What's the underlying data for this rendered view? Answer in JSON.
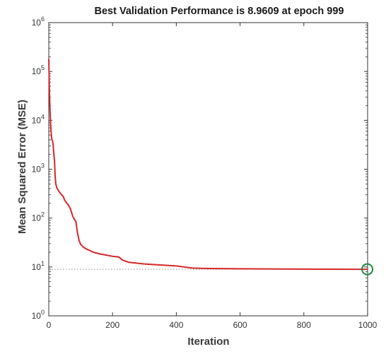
{
  "chart_data": {
    "type": "line",
    "title": "Best Validation Performance is 8.9609 at epoch 999",
    "xlabel": "Iteration",
    "ylabel": "Mean Squared Error  (MSE)",
    "xlim": [
      0,
      1000
    ],
    "ylim": [
      1,
      1000000
    ],
    "yscale": "log",
    "grid": false,
    "x_ticks": [
      "0",
      "200",
      "400",
      "600",
      "800",
      "1000"
    ],
    "y_ticks": [
      {
        "base": "10",
        "exp": "0"
      },
      {
        "base": "10",
        "exp": "1"
      },
      {
        "base": "10",
        "exp": "2"
      },
      {
        "base": "10",
        "exp": "3"
      },
      {
        "base": "10",
        "exp": "4"
      },
      {
        "base": "10",
        "exp": "5"
      },
      {
        "base": "10",
        "exp": "6"
      }
    ],
    "series": [
      {
        "color": "#d62728",
        "x": [
          0,
          2,
          4,
          6,
          8,
          10,
          12,
          14,
          16,
          18,
          20,
          22,
          25,
          30,
          35,
          40,
          45,
          50,
          55,
          60,
          65,
          70,
          75,
          80,
          85,
          90,
          95,
          100,
          110,
          120,
          140,
          160,
          180,
          200,
          220,
          230,
          250,
          300,
          350,
          400,
          450,
          500,
          600,
          700,
          800,
          900,
          999
        ],
        "y": [
          180000,
          40000,
          15000,
          8000,
          5000,
          4000,
          3800,
          3000,
          2000,
          1500,
          700,
          500,
          420,
          370,
          330,
          300,
          280,
          230,
          210,
          190,
          170,
          140,
          110,
          95,
          85,
          50,
          35,
          29,
          25,
          23,
          20,
          18.5,
          17.5,
          16.5,
          16,
          14,
          12.5,
          11.5,
          11,
          10.5,
          9.5,
          9.3,
          9.2,
          9.1,
          9.05,
          9.0,
          8.9609
        ]
      }
    ],
    "best": {
      "x": 999,
      "y": 8.9609,
      "marker_color": "#1a8a3a"
    }
  }
}
